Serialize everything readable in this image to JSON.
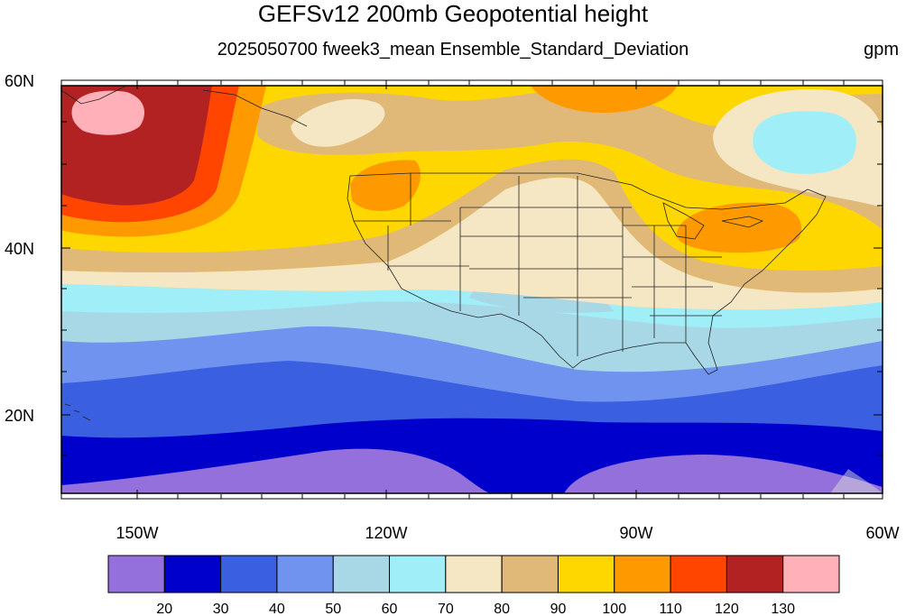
{
  "title": "GEFSv12 200mb Geopotential height",
  "subtitle": "2025050700 fweek3_mean Ensemble_Standard_Deviation",
  "units": "gpm",
  "lat_labels": [
    "60N",
    "40N",
    "20N"
  ],
  "lon_labels": [
    "150W",
    "120W",
    "90W",
    "60W"
  ],
  "colorbar": {
    "colors": [
      "#9370db",
      "#0000cd",
      "#3a5fe0",
      "#6f93ee",
      "#a8d8e6",
      "#a0eef8",
      "#f5e6c4",
      "#e0b878",
      "#ffd700",
      "#ff9900",
      "#ff4500",
      "#b22222",
      "#ffb0b8"
    ],
    "labels": [
      "20",
      "30",
      "40",
      "50",
      "60",
      "70",
      "80",
      "90",
      "100",
      "110",
      "120",
      "130"
    ]
  }
}
